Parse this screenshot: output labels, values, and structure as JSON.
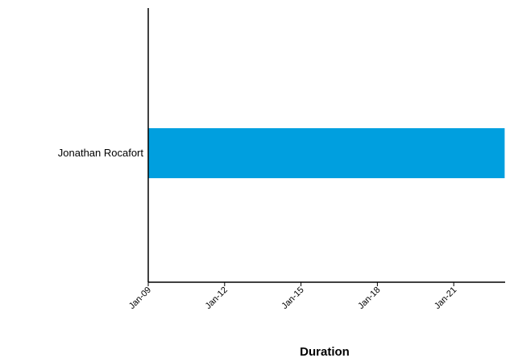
{
  "chart_data": {
    "type": "bar",
    "orientation": "horizontal",
    "categories": [
      "Jonathan Rocafort"
    ],
    "series": [
      {
        "start": [
          "Jan-09"
        ],
        "end": [
          "Jan-23"
        ],
        "color": "#009fdf"
      }
    ],
    "x_ticks": [
      "Jan-09",
      "Jan-12",
      "Jan-15",
      "Jan-18",
      "Jan-21"
    ],
    "xlabel": "Duration",
    "ylabel": "",
    "title": "",
    "xlim": [
      "Jan-09",
      "Jan-23"
    ],
    "grid": false,
    "legend": "none"
  }
}
